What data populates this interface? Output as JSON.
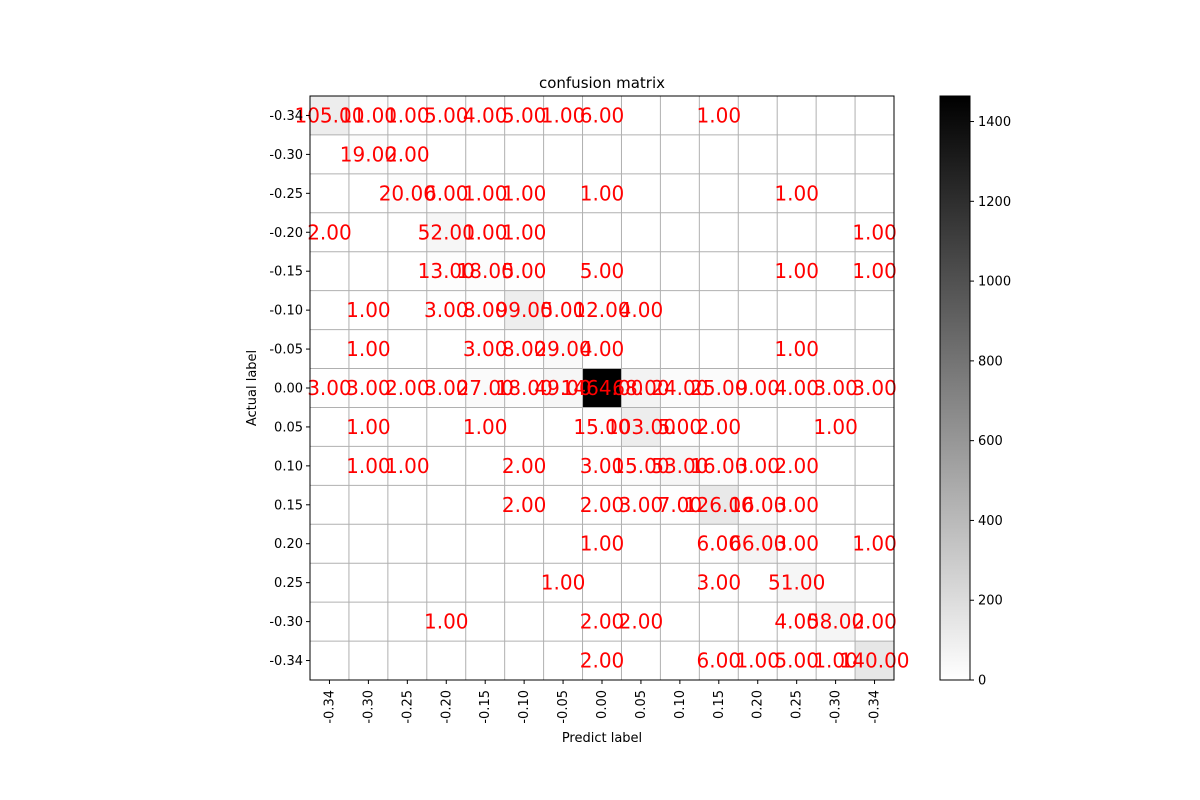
{
  "chart_data": {
    "type": "heatmap",
    "title": "confusion matrix",
    "xlabel": "Predict label",
    "ylabel": "Actual label",
    "x_ticks": [
      "-0.34",
      "-0.30",
      "-0.25",
      "-0.20",
      "-0.15",
      "-0.10",
      "-0.05",
      "0.00",
      "0.05",
      "0.10",
      "0.15",
      "0.20",
      "0.25",
      "-0.30",
      "-0.34"
    ],
    "y_ticks": [
      "-0.34",
      "-0.30",
      "-0.25",
      "-0.20",
      "-0.15",
      "-0.10",
      "-0.05",
      "0.00",
      "0.05",
      "0.10",
      "0.15",
      "0.20",
      "0.25",
      "-0.30",
      "-0.34"
    ],
    "cell_labels": [
      [
        "105.00",
        "11.00",
        "1.00",
        "5.00",
        "4.00",
        "5.00",
        "1.00",
        "6.00",
        "",
        "",
        "1.00",
        "",
        "",
        "",
        ""
      ],
      [
        "",
        "19.00",
        "2.00",
        "",
        "",
        "",
        "",
        "",
        "",
        "",
        "",
        "",
        "",
        "",
        ""
      ],
      [
        "",
        "",
        "20.00",
        "6.00",
        "1.00",
        "1.00",
        "",
        "1.00",
        "",
        "",
        "",
        "",
        "1.00",
        "",
        ""
      ],
      [
        "2.00",
        "",
        "",
        "52.00",
        "1.00",
        "1.00",
        "",
        "",
        "",
        "",
        "",
        "",
        "",
        "",
        "1.00"
      ],
      [
        "",
        "",
        "",
        "13.00",
        "18.00",
        "5.00",
        "",
        "5.00",
        "",
        "",
        "",
        "",
        "1.00",
        "",
        "1.00"
      ],
      [
        "",
        "1.00",
        "",
        "3.00",
        "8.00",
        "99.00",
        "5.00",
        "12.00",
        "4.00",
        "",
        "",
        "",
        "",
        "",
        ""
      ],
      [
        "",
        "1.00",
        "",
        "",
        "3.00",
        "8.00",
        "29.00",
        "4.00",
        "",
        "",
        "",
        "",
        "1.00",
        "",
        ""
      ],
      [
        "3.00",
        "3.00",
        "2.00",
        "3.00",
        "27.00",
        "18.00",
        "49.00",
        "1464.00",
        "68.00",
        "24.00",
        "25.00",
        "9.00",
        "4.00",
        "3.00",
        "3.00"
      ],
      [
        "",
        "1.00",
        "",
        "",
        "1.00",
        "",
        "",
        "15.00",
        "103.00",
        "5.00",
        "2.00",
        "",
        "",
        "1.00",
        ""
      ],
      [
        "",
        "1.00",
        "1.00",
        "",
        "",
        "2.00",
        "",
        "3.00",
        "15.00",
        "53.00",
        "16.00",
        "3.00",
        "2.00",
        "",
        ""
      ],
      [
        "",
        "",
        "",
        "",
        "",
        "2.00",
        "",
        "2.00",
        "3.00",
        "7.00",
        "126.00",
        "16.00",
        "3.00",
        "",
        ""
      ],
      [
        "",
        "",
        "",
        "",
        "",
        "",
        "",
        "1.00",
        "",
        "",
        "6.00",
        "66.00",
        "3.00",
        "",
        "1.00"
      ],
      [
        "",
        "",
        "",
        "",
        "",
        "",
        "1.00",
        "",
        "",
        "",
        "3.00",
        "",
        "51.00",
        "",
        ""
      ],
      [
        "",
        "",
        "",
        "1.00",
        "",
        "",
        "",
        "2.00",
        "2.00",
        "",
        "",
        "",
        "4.00",
        "58.00",
        "2.00"
      ],
      [
        "",
        "",
        "",
        "",
        "",
        "",
        "",
        "2.00",
        "",
        "",
        "6.00",
        "1.00",
        "5.00",
        "1.00",
        "140.00"
      ]
    ],
    "values": [
      [
        105,
        11,
        1,
        5,
        4,
        5,
        1,
        6,
        0,
        0,
        1,
        0,
        0,
        0,
        0
      ],
      [
        0,
        19,
        2,
        0,
        0,
        0,
        0,
        0,
        0,
        0,
        0,
        0,
        0,
        0,
        0
      ],
      [
        0,
        0,
        20,
        6,
        1,
        1,
        0,
        1,
        0,
        0,
        0,
        0,
        1,
        0,
        0
      ],
      [
        2,
        0,
        0,
        52,
        1,
        1,
        0,
        0,
        0,
        0,
        0,
        0,
        0,
        0,
        1
      ],
      [
        0,
        0,
        0,
        13,
        18,
        5,
        0,
        5,
        0,
        0,
        0,
        0,
        1,
        0,
        1
      ],
      [
        0,
        1,
        0,
        3,
        8,
        99,
        5,
        12,
        4,
        0,
        0,
        0,
        0,
        0,
        0
      ],
      [
        0,
        1,
        0,
        0,
        3,
        8,
        29,
        4,
        0,
        0,
        0,
        0,
        1,
        0,
        0
      ],
      [
        3,
        3,
        2,
        3,
        27,
        18,
        49,
        1464,
        68,
        24,
        25,
        9,
        4,
        3,
        3
      ],
      [
        0,
        1,
        0,
        0,
        1,
        0,
        0,
        15,
        103,
        5,
        2,
        0,
        0,
        1,
        0
      ],
      [
        0,
        1,
        1,
        0,
        0,
        2,
        0,
        3,
        15,
        53,
        16,
        3,
        2,
        0,
        0
      ],
      [
        0,
        0,
        0,
        0,
        0,
        2,
        0,
        2,
        3,
        7,
        126,
        16,
        3,
        0,
        0
      ],
      [
        0,
        0,
        0,
        0,
        0,
        0,
        0,
        1,
        0,
        0,
        6,
        66,
        3,
        0,
        1
      ],
      [
        0,
        0,
        0,
        0,
        0,
        0,
        1,
        0,
        0,
        0,
        3,
        0,
        51,
        0,
        0
      ],
      [
        0,
        0,
        0,
        1,
        0,
        0,
        0,
        2,
        2,
        0,
        0,
        0,
        4,
        58,
        2
      ],
      [
        0,
        0,
        0,
        0,
        0,
        0,
        0,
        2,
        0,
        0,
        6,
        1,
        5,
        1,
        140
      ]
    ],
    "colorscale": "Greys",
    "vmin": 0,
    "vmax": 1464,
    "colorbar_ticks": [
      "0",
      "200",
      "400",
      "600",
      "800",
      "1000",
      "1200",
      "1400"
    ],
    "colorbar_tick_values": [
      0,
      200,
      400,
      600,
      800,
      1000,
      1200,
      1400
    ],
    "grid": true,
    "cell_label_color": "#ff0000"
  }
}
